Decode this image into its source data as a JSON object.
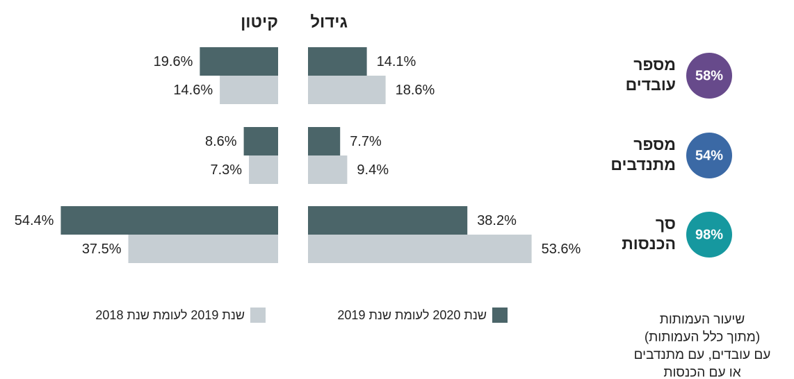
{
  "chart_data": {
    "type": "bar",
    "categories": [
      [
        "מספר",
        "עובדים"
      ],
      [
        "מספר",
        "מתנדבים"
      ],
      [
        "סך",
        "הכנסות"
      ]
    ],
    "rates": [
      58,
      54,
      98
    ],
    "rate_labels": [
      "58%",
      "54%",
      "98%"
    ],
    "rate_colors": [
      "#674a8b",
      "#3b69a5",
      "#16989f"
    ],
    "series": [
      {
        "name": "שנת 2020 לעומת שנת 2019",
        "color": "#4b6569"
      },
      {
        "name": "שנת 2019 לעומת שנת 2018",
        "color": "#c6ced3"
      }
    ],
    "panels": [
      {
        "title": "גידול",
        "xlim": [
          0,
          55
        ],
        "series": [
          {
            "values": [
              14.1,
              7.7,
              38.2
            ],
            "value_labels": [
              "14.1%",
              "7.7%",
              "38.2%"
            ]
          },
          {
            "values": [
              18.6,
              9.4,
              53.6
            ],
            "value_labels": [
              "18.6%",
              "9.4%",
              "53.6%"
            ]
          }
        ]
      },
      {
        "title": "קיטון",
        "xlim": [
          0,
          55
        ],
        "series": [
          {
            "values": [
              19.6,
              8.6,
              54.4
            ],
            "value_labels": [
              "19.6%",
              "8.6%",
              "54.4%"
            ]
          },
          {
            "values": [
              14.6,
              7.3,
              37.5
            ],
            "value_labels": [
              "14.6%",
              "7.3%",
              "37.5%"
            ]
          }
        ]
      }
    ],
    "note": [
      "שיעור העמותות",
      "(מתוך כלל העמותות)",
      "עם עובדים, עם מתנדבים",
      "או עם הכנסות"
    ]
  }
}
